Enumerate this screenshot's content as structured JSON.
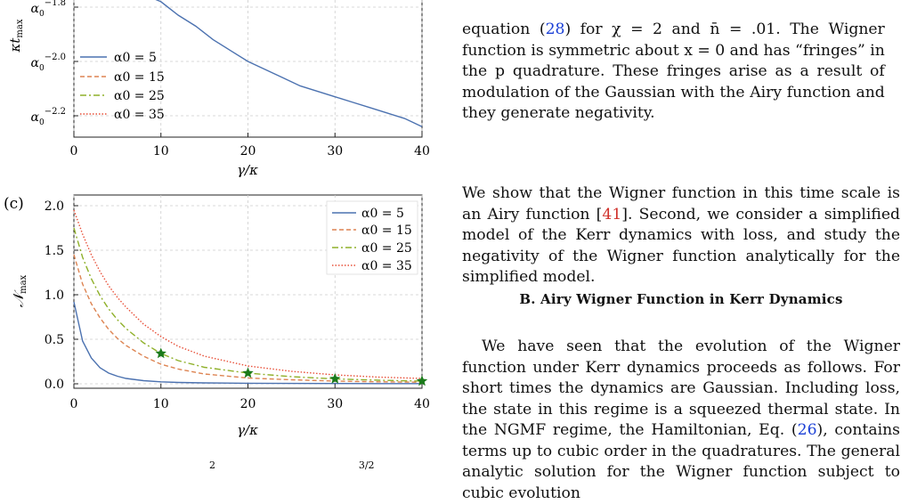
{
  "figure": {
    "top_panel": {
      "ylabel": "κt_max",
      "yticks": [
        "α0^-1.8",
        "α0^-2.0",
        "α0^-2.2"
      ],
      "xticks": [
        "0",
        "10",
        "20",
        "30",
        "40"
      ],
      "xlabel": "γ/κ",
      "legend": [
        "α0 = 5",
        "α0 = 15",
        "α0 = 25",
        "α0 = 35"
      ]
    },
    "panel_c": {
      "panel_label": "(c)",
      "ylabel": "N_max",
      "yticks": [
        "2.0",
        "1.5",
        "1.0",
        "0.5",
        "0.0"
      ],
      "xticks": [
        "0",
        "10",
        "20",
        "30",
        "40"
      ],
      "xlabel": "γ/κ",
      "legend": [
        "α0 = 5",
        "α0 = 15",
        "α0 = 25",
        "α0 = 35"
      ]
    },
    "bottom_caption_fragment": "2                                              3/2"
  },
  "colors": {
    "s5": "#4c72b0",
    "s15": "#dd8452",
    "s25": "#8fb02a",
    "s35": "#e8513a",
    "marker": "#1a7a1a"
  },
  "chart_data": [
    {
      "type": "line",
      "xlabel": "γ/κ",
      "ylabel": "κt_max",
      "xlim": [
        0,
        40
      ],
      "yscale": "log (powers of α0)",
      "series": [
        {
          "name": "α0 = 5",
          "x": [
            10,
            12,
            14,
            16,
            18,
            20,
            22,
            24,
            26,
            28,
            30,
            32,
            34,
            36,
            38,
            40
          ],
          "y_exponent": [
            -1.78,
            -1.83,
            -1.87,
            -1.92,
            -1.96,
            -2.0,
            -2.03,
            -2.06,
            -2.09,
            -2.11,
            -2.13,
            -2.15,
            -2.17,
            -2.19,
            -2.21,
            -2.24
          ]
        }
      ],
      "legend": [
        "α0 = 5",
        "α0 = 15",
        "α0 = 25",
        "α0 = 35"
      ],
      "grid": true
    },
    {
      "type": "line",
      "panel": "(c)",
      "xlabel": "γ/κ",
      "ylabel": "N_max",
      "xlim": [
        0,
        40
      ],
      "ylim": [
        -0.1,
        2.05
      ],
      "grid": true,
      "legend_position": "top-right",
      "x": [
        0,
        1,
        2,
        3,
        4,
        5,
        6,
        8,
        10,
        12,
        15,
        20,
        25,
        30,
        35,
        40
      ],
      "series": [
        {
          "name": "α0 = 5",
          "values": [
            0.92,
            0.48,
            0.29,
            0.18,
            0.12,
            0.085,
            0.06,
            0.035,
            0.022,
            0.015,
            0.01,
            0.006,
            0.004,
            0.003,
            0.002,
            0.002
          ]
        },
        {
          "name": "α0 = 15",
          "values": [
            1.45,
            1.12,
            0.9,
            0.74,
            0.61,
            0.51,
            0.43,
            0.31,
            0.22,
            0.165,
            0.11,
            0.065,
            0.045,
            0.03,
            0.022,
            0.018
          ]
        },
        {
          "name": "α0 = 25",
          "values": [
            1.75,
            1.42,
            1.18,
            0.99,
            0.84,
            0.72,
            0.62,
            0.46,
            0.34,
            0.26,
            0.185,
            0.12,
            0.08,
            0.055,
            0.04,
            0.03
          ]
        },
        {
          "name": "α0 = 35",
          "values": [
            1.95,
            1.68,
            1.45,
            1.26,
            1.1,
            0.97,
            0.86,
            0.67,
            0.53,
            0.42,
            0.31,
            0.2,
            0.14,
            0.1,
            0.075,
            0.06
          ]
        }
      ],
      "markers": {
        "x": [
          10,
          20,
          30,
          40
        ],
        "y": [
          0.34,
          0.12,
          0.055,
          0.03
        ],
        "shape": "star"
      }
    }
  ],
  "text": {
    "p1_lines": [
      "equation (28) for χ = 2 and n̄ = .01. The Wigner",
      "function is symmetric about x = 0 and has “fringes” in",
      "the p quadrature. These fringes arise as a result of",
      "modulation of the Gaussian with the Airy function and",
      "they generate negativity."
    ],
    "p2_a": "We show that the Wigner function in this time scale is an Airy function [",
    "p2_ref": "41",
    "p2_b": "]. Second, we consider a simplified model of the Kerr dynamics with loss, and study the negativity of the Wigner function analytically for the simplified model.",
    "section_heading": "B.   Airy Wigner Function in Kerr Dynamics",
    "p3_a": "We have seen that the evolution of the Wigner function under Kerr dynamics proceeds as follows. For short times the dynamics are Gaussian. Including loss, the state in this regime is a squeezed thermal state. In the NGMF regime, the Hamiltonian, Eq. (",
    "p3_ref": "26",
    "p3_b": "), contains terms up to cubic order in the quadratures. The general analytic solution for the Wigner function subject to cubic evolution"
  }
}
